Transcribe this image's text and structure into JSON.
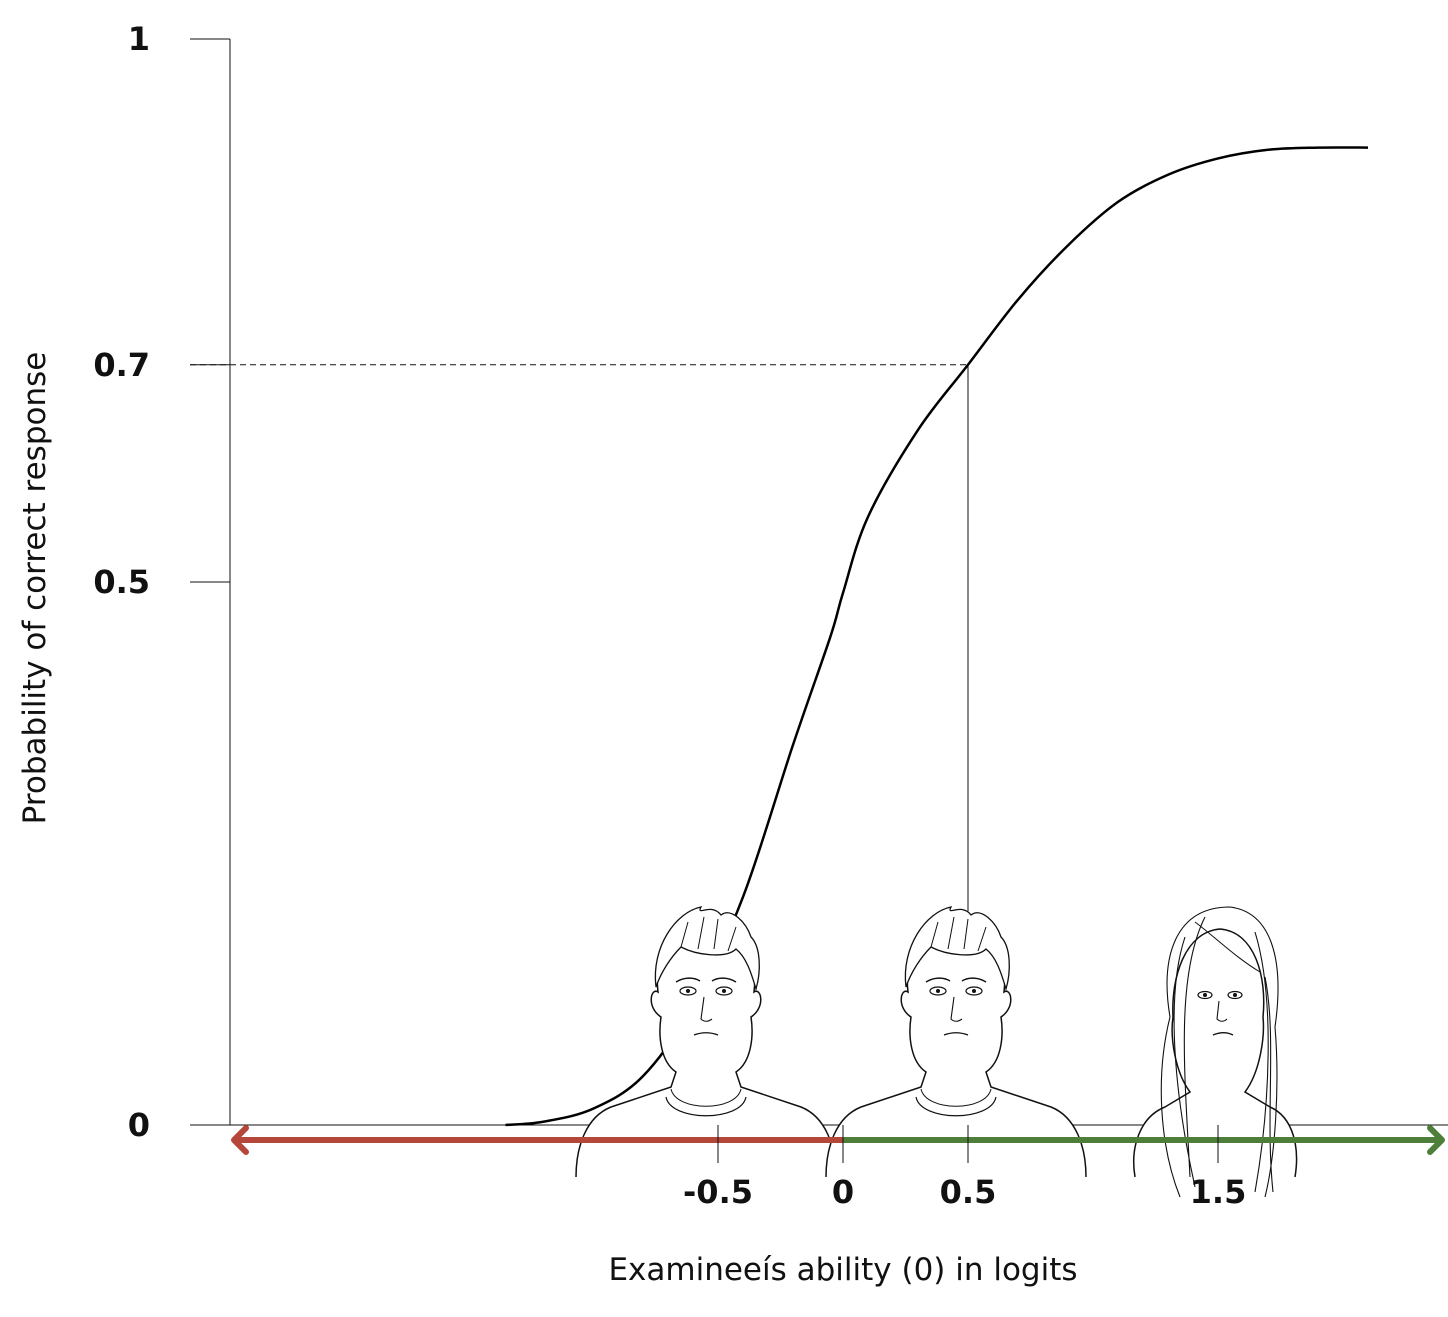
{
  "chart_data": {
    "type": "line",
    "title": "",
    "xlabel": "Examineeís ability (0) in logits",
    "ylabel": "Probability of correct response",
    "xlim": [
      -1.5,
      2.2
    ],
    "ylim": [
      0,
      1
    ],
    "x_ticks": [
      "-0.5",
      "0",
      "0.5",
      "1.5"
    ],
    "x_tick_values": [
      -0.5,
      0,
      0.5,
      1.5
    ],
    "y_ticks": [
      "0",
      "0.5",
      "0.7",
      "1"
    ],
    "y_tick_values": [
      0,
      0.5,
      0.7,
      1
    ],
    "grid": false,
    "series": [
      {
        "x": [
          -1.35,
          -1.2,
          -1.0,
          -0.8,
          -0.6,
          -0.4,
          -0.2,
          -0.05,
          0.0,
          0.1,
          0.3,
          0.5,
          0.7,
          0.9,
          1.1,
          1.3,
          1.5,
          1.7,
          1.9,
          2.1
        ],
        "y": [
          0.0,
          0.003,
          0.015,
          0.045,
          0.11,
          0.21,
          0.35,
          0.45,
          0.49,
          0.56,
          0.64,
          0.7,
          0.76,
          0.81,
          0.85,
          0.875,
          0.89,
          0.898,
          0.9,
          0.9
        ]
      }
    ],
    "annotations": [
      {
        "type": "dashed-hline",
        "y": 0.7,
        "x_from": -1.5,
        "x_to": 0.5
      },
      {
        "type": "vline",
        "x": 0.5,
        "y_from": 0,
        "y_to": 0.7
      }
    ],
    "ability_axis": {
      "negative_color": "#b5473a",
      "positive_color": "#4e7f3a",
      "direction": "both"
    },
    "examinees": [
      {
        "icon": "boy-face-icon",
        "position": -0.5
      },
      {
        "icon": "boy-face-icon",
        "position": 0.5
      },
      {
        "icon": "girl-face-icon",
        "position": 1.5
      }
    ]
  }
}
